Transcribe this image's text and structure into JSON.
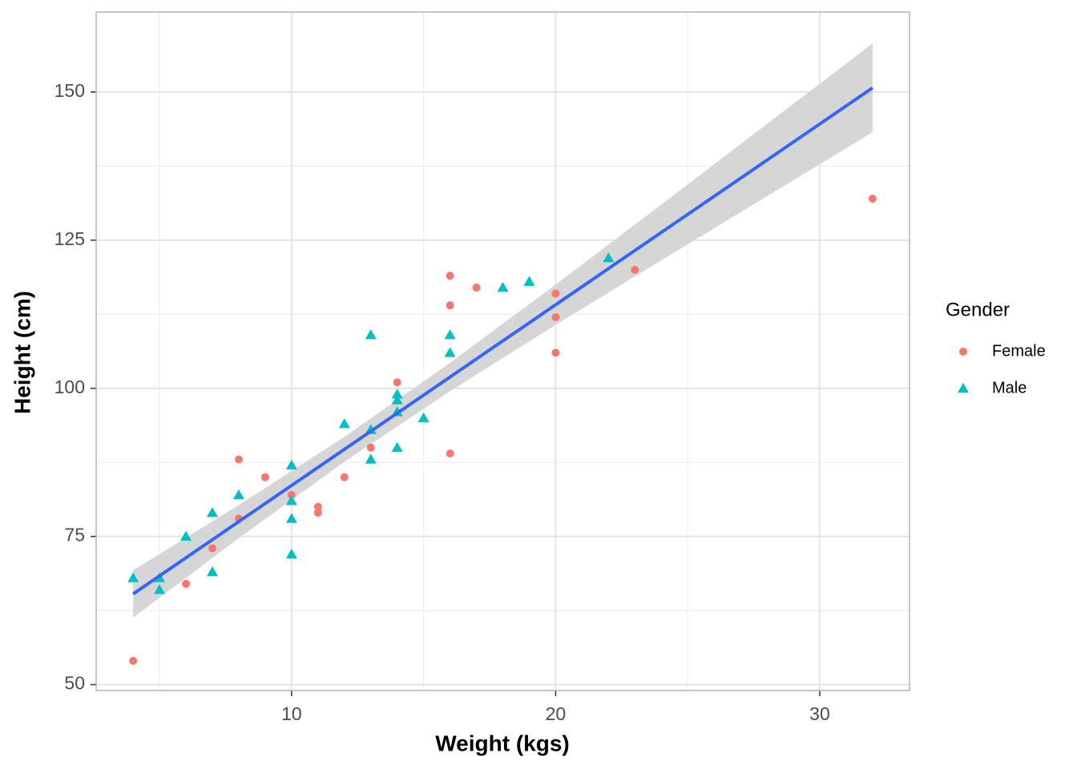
{
  "chart_data": {
    "type": "scatter",
    "xlabel": "Weight (kgs)",
    "ylabel": "Height (cm)",
    "xlim": [
      2.6,
      33.4
    ],
    "ylim": [
      49,
      163.5
    ],
    "xticks": [
      10,
      20,
      30
    ],
    "yticks": [
      50,
      75,
      100,
      125,
      150
    ],
    "xminor": [
      5,
      15,
      25
    ],
    "yminor": [
      62.5,
      87.5,
      112.5,
      137.5
    ],
    "grid": true,
    "legend": {
      "title": "Gender",
      "position": "right"
    },
    "series": [
      {
        "name": "Female",
        "color": "#F8766D",
        "shape": "circle",
        "x": [
          4,
          6,
          7,
          8,
          8,
          9,
          10,
          11,
          11,
          12,
          13,
          14,
          16,
          16,
          16,
          17,
          20,
          20,
          20,
          23,
          32
        ],
        "values": [
          54,
          67,
          73,
          88,
          78,
          85,
          82,
          80,
          79,
          85,
          90,
          101,
          119,
          114,
          89,
          117,
          116,
          112,
          106,
          120,
          132
        ]
      },
      {
        "name": "Male",
        "color": "#00BFC4",
        "shape": "triangle",
        "x": [
          4,
          5,
          5,
          6,
          7,
          7,
          8,
          10,
          10,
          10,
          10,
          12,
          13,
          13,
          13,
          14,
          14,
          14,
          14,
          15,
          16,
          16,
          18,
          19,
          22
        ],
        "values": [
          68,
          68,
          66,
          75,
          79,
          69,
          82,
          87,
          81,
          78,
          72,
          94,
          109,
          93,
          88,
          99,
          98,
          96,
          90,
          95,
          109,
          106,
          117,
          118,
          122
        ]
      }
    ],
    "band": {
      "color": "#d4d4d4",
      "x": [
        4,
        8,
        12,
        16,
        20,
        24,
        28,
        32
      ],
      "lower": [
        61.3,
        74.7,
        87.6,
        99.5,
        110.7,
        121.6,
        132.4,
        143.2
      ],
      "upper": [
        69.3,
        80.3,
        91.8,
        104.3,
        117.5,
        131.0,
        144.6,
        158.2
      ]
    },
    "fit": {
      "color": "#3366FF",
      "x": [
        4,
        32
      ],
      "values": [
        65.3,
        150.7
      ]
    }
  }
}
